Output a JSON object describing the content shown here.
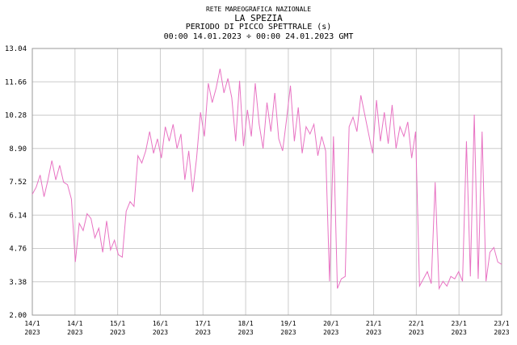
{
  "chart_data": {
    "type": "line",
    "supertitle": "RETE MAREOGRAFICA NAZIONALE",
    "title": "LA SPEZIA",
    "subtitle": "PERIODO DI PICCO SPETTRALE (s)",
    "period": "00:00 14.01.2023 ÷ 00:00 24.01.2023 GMT",
    "color": "#e873c3",
    "grid": true,
    "xlim": [
      0,
      240
    ],
    "xticks": [
      {
        "value": 0,
        "label": "14/1\n2023"
      },
      {
        "value": 21.818,
        "label": "14/1\n2023"
      },
      {
        "value": 43.636,
        "label": "15/1\n2023"
      },
      {
        "value": 65.455,
        "label": "16/1\n2023"
      },
      {
        "value": 87.273,
        "label": "17/1\n2023"
      },
      {
        "value": 109.091,
        "label": "18/1\n2023"
      },
      {
        "value": 130.909,
        "label": "19/1\n2023"
      },
      {
        "value": 152.727,
        "label": "20/1\n2023"
      },
      {
        "value": 174.545,
        "label": "21/1\n2023"
      },
      {
        "value": 196.364,
        "label": "22/1\n2023"
      },
      {
        "value": 218.182,
        "label": "23/1\n2023"
      },
      {
        "value": 240,
        "label": "23/1\n2023"
      }
    ],
    "ylim": [
      2,
      13.04
    ],
    "yticks": [
      {
        "value": 2,
        "label": "2.00"
      },
      3.38,
      4.76,
      6.14,
      7.52,
      {
        "value": 8.9,
        "label": "8.90"
      },
      10.28,
      11.66,
      13.04
    ],
    "x": [
      0,
      2,
      4,
      6,
      8,
      10,
      12,
      14,
      16,
      18,
      20,
      22,
      24,
      26,
      28,
      30,
      32,
      34,
      36,
      38,
      40,
      42,
      44,
      46,
      48,
      50,
      52,
      54,
      56,
      58,
      60,
      62,
      64,
      66,
      68,
      70,
      72,
      74,
      76,
      78,
      80,
      82,
      84,
      86,
      88,
      90,
      92,
      94,
      96,
      98,
      100,
      102,
      104,
      106,
      108,
      110,
      112,
      114,
      116,
      118,
      120,
      122,
      124,
      126,
      128,
      130,
      132,
      134,
      136,
      138,
      140,
      142,
      144,
      146,
      148,
      150,
      152,
      154,
      156,
      158,
      160,
      162,
      164,
      166,
      168,
      170,
      172,
      174,
      176,
      178,
      180,
      182,
      184,
      186,
      188,
      190,
      192,
      194,
      196,
      198,
      200,
      202,
      204,
      206,
      208,
      210,
      212,
      214,
      216,
      218,
      220,
      222,
      224,
      226,
      228,
      230,
      232,
      234,
      236,
      238,
      240
    ],
    "values": [
      7.0,
      7.3,
      7.8,
      6.9,
      7.6,
      8.4,
      7.6,
      8.2,
      7.5,
      7.4,
      6.8,
      4.2,
      5.8,
      5.5,
      6.2,
      6.0,
      5.2,
      5.6,
      4.6,
      5.9,
      4.7,
      5.1,
      4.5,
      4.4,
      6.3,
      6.7,
      6.5,
      8.6,
      8.3,
      8.8,
      9.6,
      8.7,
      9.3,
      8.5,
      9.8,
      9.2,
      9.9,
      8.9,
      9.5,
      7.6,
      8.8,
      7.1,
      8.5,
      10.4,
      9.4,
      11.6,
      10.8,
      11.4,
      12.2,
      11.2,
      11.8,
      11.0,
      9.2,
      11.7,
      9.0,
      10.5,
      9.4,
      11.6,
      9.9,
      8.9,
      10.8,
      9.6,
      11.2,
      9.3,
      8.8,
      10.1,
      11.5,
      9.2,
      10.6,
      8.7,
      9.8,
      9.5,
      9.9,
      8.6,
      9.4,
      8.8,
      3.4,
      9.4,
      3.1,
      3.5,
      3.6,
      9.8,
      10.2,
      9.6,
      11.1,
      10.3,
      9.5,
      8.7,
      10.9,
      9.2,
      10.4,
      9.1,
      10.7,
      8.9,
      9.8,
      9.4,
      10.0,
      8.5,
      9.6,
      3.2,
      3.5,
      3.8,
      3.3,
      7.5,
      3.1,
      3.4,
      3.2,
      3.6,
      3.5,
      3.8,
      3.4,
      9.2,
      3.6,
      10.3,
      3.5,
      9.6,
      3.4,
      4.6,
      4.8,
      4.2,
      4.1
    ]
  }
}
